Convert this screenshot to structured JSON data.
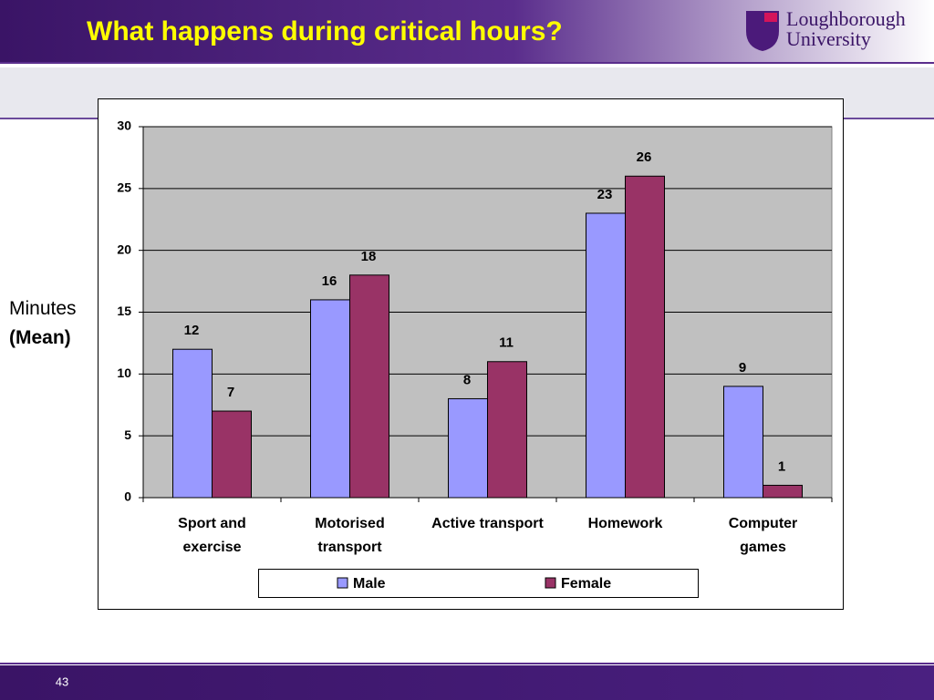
{
  "slide": {
    "logo": [
      "Loughborough",
      "University"
    ],
    "page_number": "43"
  },
  "chart_data": {
    "type": "bar",
    "title": "What happens during critical hours?",
    "ylabel": [
      "Minutes",
      "(Mean)"
    ],
    "categories": [
      "Sport and exercise",
      "Motorised transport",
      "Active transport",
      "Homework",
      "Computer games"
    ],
    "series": [
      {
        "name": "Male",
        "color": "#9999ff",
        "values": [
          12,
          16,
          8,
          23,
          9
        ]
      },
      {
        "name": "Female",
        "color": "#993366",
        "values": [
          7,
          18,
          11,
          26,
          1
        ]
      }
    ],
    "ylim": [
      0,
      30
    ],
    "yticks": [
      0,
      5,
      10,
      15,
      20,
      25,
      30
    ],
    "grid": true,
    "legend": "bottom"
  }
}
